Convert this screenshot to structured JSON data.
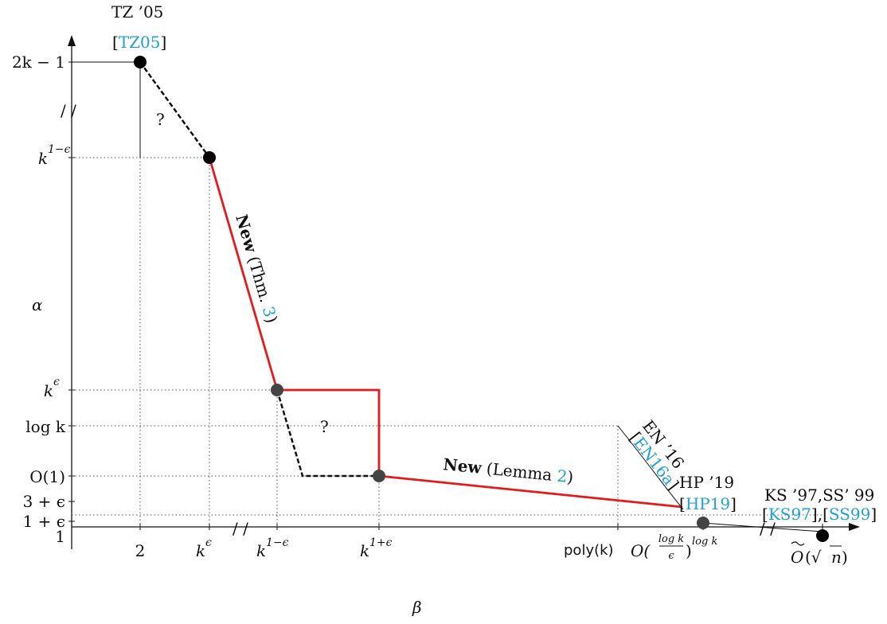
{
  "diagram": {
    "y_labels": {
      "top": "2k − 1",
      "k1e": "k",
      "k1e_sup": "1−ϵ",
      "alpha": "α",
      "ke": "k",
      "ke_sup": "ϵ",
      "logk": "log k",
      "o1": "O(1)",
      "three_e": "3 + ϵ",
      "one_e": "1 + ϵ",
      "one": "1"
    },
    "x_labels": {
      "two": "2",
      "ke": "k",
      "ke_sup": "ϵ",
      "k1me": "k",
      "k1me_sup": "1−ϵ",
      "k1pe": "k",
      "k1pe_sup": "1+ϵ",
      "poly": "poly(k)",
      "ologk_O": "O(",
      "ologk_num": "log k",
      "ologk_den": "ϵ",
      "ologk_close": ")",
      "ologk_sup": "log k",
      "otilde": "O",
      "otilde_rest_open": "(√",
      "otilde_n": "n",
      "otilde_rest_close": ")",
      "beta": "β"
    },
    "breaks": {
      "y_break": "/ /",
      "x_break_1": "/ /",
      "x_break_2": "/ /"
    },
    "annotations": {
      "tz_name": "TZ ’05",
      "tz_cite_open": "[",
      "tz_cite": "TZ05",
      "tz_cite_close": "]",
      "q1": "?",
      "q2": "?",
      "new_thm_bold": "New",
      "new_thm_rest": " (Thm. ",
      "new_thm_ref": "3",
      "new_thm_close": ")",
      "new_lemma_bold": "New",
      "new_lemma_rest": " (Lemma ",
      "new_lemma_ref": "2",
      "new_lemma_close": ")",
      "en_name": "EN ’16",
      "en_cite_open": "[",
      "en_cite": "EN16a",
      "en_cite_close": "]",
      "hp_name": "HP ’19",
      "hp_cite_open": "[",
      "hp_cite": "HP19",
      "hp_cite_close": "]",
      "ks_name": "KS ’97,SS’ 99",
      "ks_cite_open": "[",
      "ks_cite_1": "KS97",
      "ks_cite_mid": "],[",
      "ks_cite_2": "SS99",
      "ks_cite_close": "]"
    },
    "colors": {
      "new_result": "#e41a1c",
      "citation": "#1ea0d8",
      "point_dark": "#000000",
      "point_gray": "#444444"
    }
  }
}
